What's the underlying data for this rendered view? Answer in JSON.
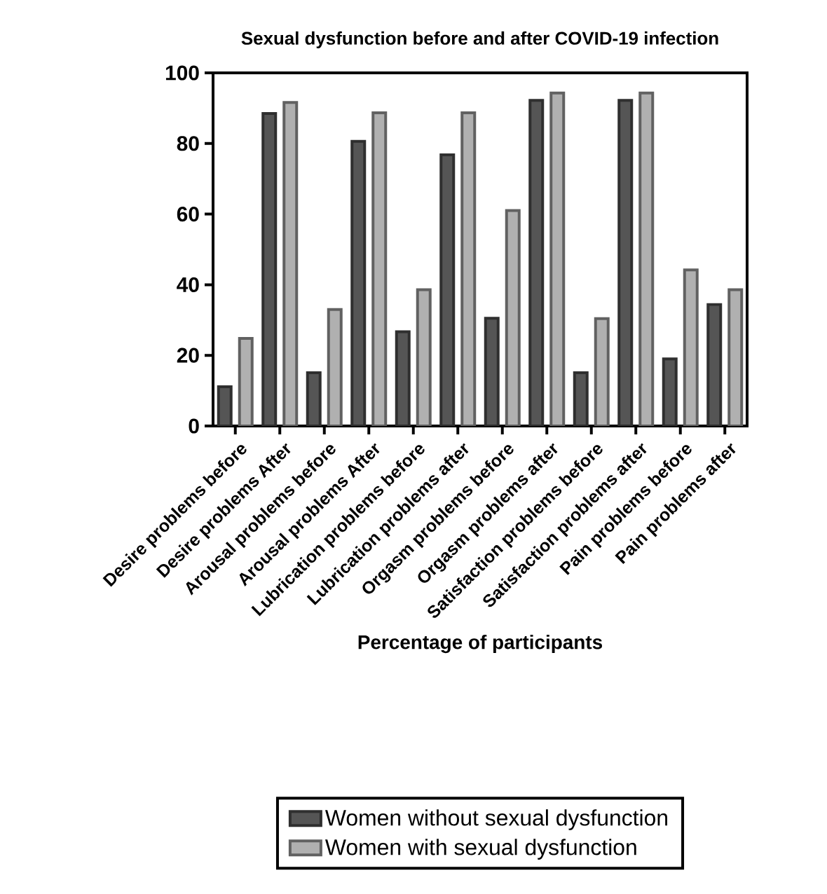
{
  "chart_data": {
    "type": "bar",
    "title": "Sexual dysfunction before and after COVID-19 infection",
    "xlabel": "Percentage of participants",
    "categories": [
      "Desire problems before",
      "Desire problems After",
      "Arousal problems before",
      "Arousal problems After",
      "Lubrication problems before",
      "Lubrication problems after",
      "Orgasm problems before",
      "Orgasm problems after",
      "Satisfaction problems before",
      "Satisfaction problems after",
      "Pain problems before",
      "Pain problems after"
    ],
    "series": [
      {
        "name": "Women without sexual dysfunction",
        "color": "#555555",
        "values": [
          11.1,
          88.5,
          15.1,
          80.6,
          26.7,
          76.8,
          30.5,
          92.2,
          15.1,
          92.2,
          19,
          34.4
        ]
      },
      {
        "name": "Women with sexual dysfunction",
        "color": "#b0b0b0",
        "values": [
          24.8,
          91.6,
          33,
          88.7,
          38.6,
          88.7,
          61,
          94.3,
          30.4,
          94.3,
          44.2,
          38.6
        ]
      }
    ],
    "ylim": [
      0,
      100
    ],
    "yticks": [
      0,
      20,
      40,
      60,
      80,
      100
    ],
    "grid": false,
    "legend": "bottom"
  }
}
